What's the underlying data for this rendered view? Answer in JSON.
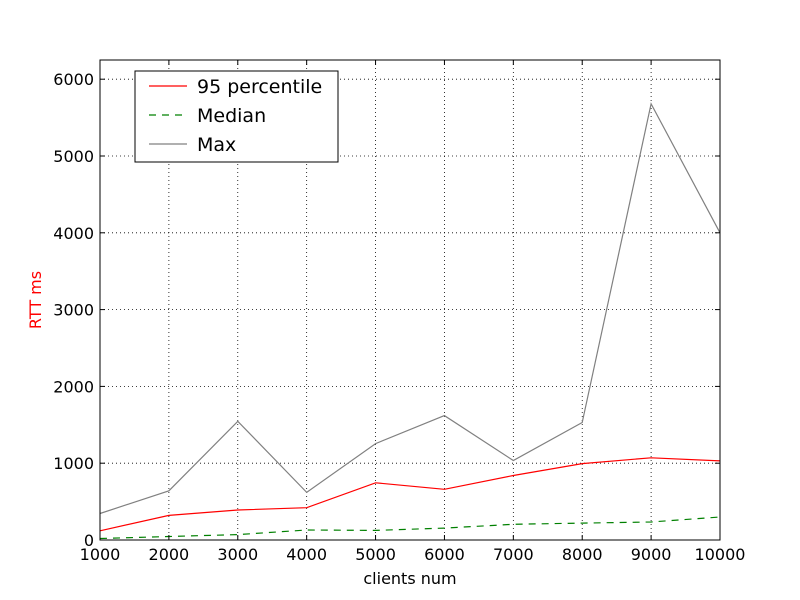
{
  "chart_data": {
    "type": "line",
    "xlabel": "clients num",
    "ylabel": "RTT ms",
    "ylabel_color": "#ff0000",
    "xlim": [
      1000,
      10000
    ],
    "ylim": [
      0,
      6250
    ],
    "xticks": [
      1000,
      2000,
      3000,
      4000,
      5000,
      6000,
      7000,
      8000,
      9000,
      10000
    ],
    "yticks": [
      0,
      1000,
      2000,
      3000,
      4000,
      5000,
      6000
    ],
    "grid": true,
    "legend_position": "top-left",
    "x": [
      1000,
      2000,
      3000,
      4000,
      5000,
      6000,
      7000,
      8000,
      9000,
      10000
    ],
    "series": [
      {
        "name": "95 percentile",
        "color": "#ff0000",
        "style": "solid",
        "values": [
          120,
          320,
          390,
          420,
          745,
          660,
          840,
          995,
          1070,
          1030
        ]
      },
      {
        "name": "Median",
        "color": "#008000",
        "style": "dashed",
        "values": [
          20,
          45,
          70,
          130,
          125,
          155,
          205,
          220,
          235,
          300
        ]
      },
      {
        "name": "Max",
        "color": "#808080",
        "style": "solid",
        "values": [
          345,
          640,
          1545,
          620,
          1255,
          1620,
          1035,
          1530,
          5680,
          4000
        ]
      }
    ]
  }
}
